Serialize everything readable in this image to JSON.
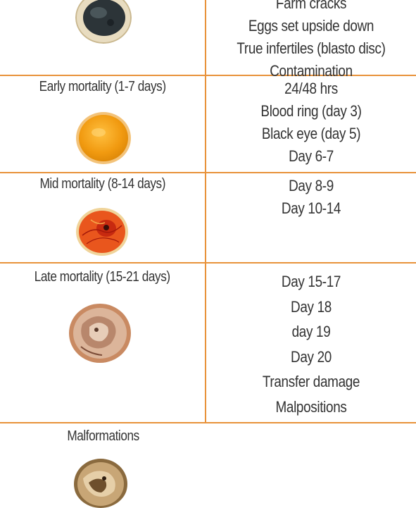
{
  "rows": [
    {
      "stage": "",
      "egg_icon": "cracked-egg-dark-icon",
      "causes": [
        "Farm cracks",
        "Eggs set upside down",
        "True infertiles (blasto disc)",
        "Contamination"
      ]
    },
    {
      "stage": "Early mortality (1-7 days)",
      "egg_icon": "yolk-egg-icon",
      "causes": [
        "24/48 hrs",
        "Blood ring (day 3)",
        "Black eye (day 5)",
        "Day 6-7"
      ]
    },
    {
      "stage": "Mid mortality (8-14 days)",
      "egg_icon": "blood-vessel-egg-icon",
      "causes": [
        "Day 8-9",
        "Day 10-14"
      ]
    },
    {
      "stage": "Late mortality (15-21 days)",
      "egg_icon": "embryo-egg-icon",
      "causes": [
        "Day 15-17",
        "Day 18",
        "day 19",
        "Day 20",
        "Transfer damage",
        "Malpositions"
      ]
    },
    {
      "stage": "Malformations",
      "egg_icon": "malformed-embryo-egg-icon",
      "causes": []
    }
  ],
  "colors": {
    "divider": "#e8923a",
    "text": "#333333"
  }
}
